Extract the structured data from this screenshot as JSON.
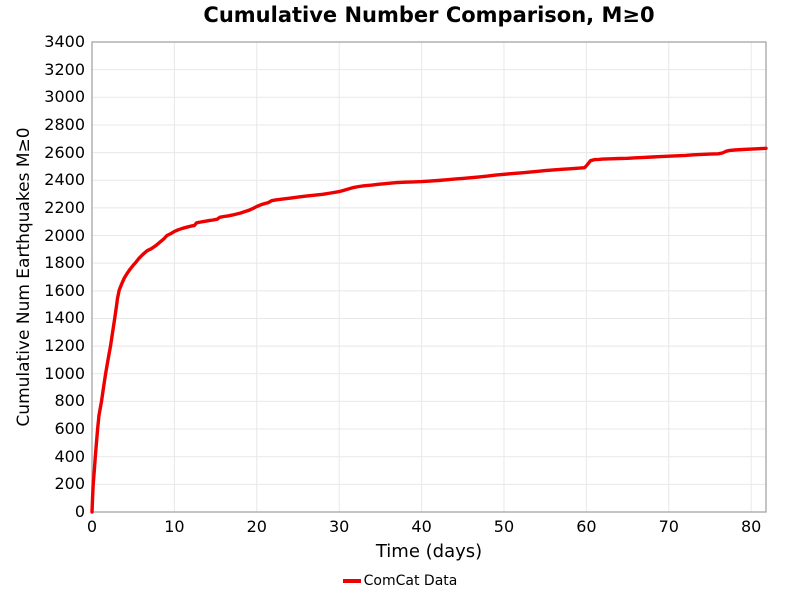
{
  "colors": {
    "line": "#ee0000",
    "grid": "#e8e8e8",
    "spine": "#a5a5a5",
    "text": "#000000",
    "background": "#ffffff"
  },
  "chart_data": {
    "type": "line",
    "title": "Cumulative Number Comparison, M≥0",
    "xlabel": "Time (days)",
    "ylabel": "Cumulative Num Earthquakes M≥0",
    "xlim": [
      0,
      81.8
    ],
    "ylim": [
      0,
      3400
    ],
    "xticks": [
      0,
      10,
      20,
      30,
      40,
      50,
      60,
      70,
      80
    ],
    "yticks": [
      0,
      200,
      400,
      600,
      800,
      1000,
      1200,
      1400,
      1600,
      1800,
      2000,
      2200,
      2400,
      2600,
      2800,
      3000,
      3200,
      3400
    ],
    "grid": true,
    "legend": {
      "position": "bottom-center",
      "entries": [
        {
          "label": "ComCat Data",
          "color": "#ee0000"
        }
      ]
    },
    "series": [
      {
        "name": "ComCat Data",
        "color": "#ee0000",
        "points": [
          [
            0,
            0
          ],
          [
            0.06,
            90
          ],
          [
            0.15,
            200
          ],
          [
            0.28,
            300
          ],
          [
            0.4,
            400
          ],
          [
            0.55,
            505
          ],
          [
            0.68,
            600
          ],
          [
            0.85,
            700
          ],
          [
            1.15,
            800
          ],
          [
            1.4,
            900
          ],
          [
            1.65,
            1000
          ],
          [
            1.95,
            1105
          ],
          [
            2.25,
            1200
          ],
          [
            2.5,
            1300
          ],
          [
            2.75,
            1400
          ],
          [
            2.95,
            1480
          ],
          [
            3.1,
            1545
          ],
          [
            3.3,
            1605
          ],
          [
            3.6,
            1650
          ],
          [
            3.9,
            1690
          ],
          [
            4.2,
            1720
          ],
          [
            4.6,
            1755
          ],
          [
            5.0,
            1785
          ],
          [
            5.3,
            1805
          ],
          [
            5.7,
            1835
          ],
          [
            6.2,
            1865
          ],
          [
            6.7,
            1890
          ],
          [
            7.2,
            1905
          ],
          [
            7.7,
            1925
          ],
          [
            8.2,
            1950
          ],
          [
            8.7,
            1975
          ],
          [
            9.1,
            2000
          ],
          [
            9.5,
            2012
          ],
          [
            10,
            2030
          ],
          [
            10.5,
            2042
          ],
          [
            11,
            2052
          ],
          [
            11.5,
            2060
          ],
          [
            12,
            2068
          ],
          [
            12.4,
            2072
          ],
          [
            12.7,
            2092
          ],
          [
            13.2,
            2098
          ],
          [
            13.7,
            2103
          ],
          [
            14.2,
            2108
          ],
          [
            14.7,
            2112
          ],
          [
            15.2,
            2118
          ],
          [
            15.5,
            2132
          ],
          [
            16,
            2138
          ],
          [
            16.5,
            2142
          ],
          [
            17,
            2148
          ],
          [
            17.5,
            2155
          ],
          [
            18,
            2162
          ],
          [
            18.5,
            2172
          ],
          [
            19,
            2182
          ],
          [
            19.5,
            2195
          ],
          [
            20,
            2210
          ],
          [
            20.5,
            2222
          ],
          [
            21,
            2232
          ],
          [
            21.4,
            2238
          ],
          [
            21.8,
            2252
          ],
          [
            22.3,
            2258
          ],
          [
            23,
            2263
          ],
          [
            24,
            2270
          ],
          [
            25,
            2278
          ],
          [
            26,
            2285
          ],
          [
            27,
            2292
          ],
          [
            28,
            2298
          ],
          [
            29,
            2308
          ],
          [
            30,
            2318
          ],
          [
            30.6,
            2328
          ],
          [
            31.2,
            2338
          ],
          [
            31.8,
            2348
          ],
          [
            32.4,
            2355
          ],
          [
            33,
            2360
          ],
          [
            34,
            2365
          ],
          [
            35,
            2372
          ],
          [
            36,
            2378
          ],
          [
            37,
            2383
          ],
          [
            38,
            2386
          ],
          [
            39,
            2388
          ],
          [
            40,
            2390
          ],
          [
            41,
            2394
          ],
          [
            42,
            2398
          ],
          [
            43,
            2403
          ],
          [
            44,
            2408
          ],
          [
            45,
            2413
          ],
          [
            46,
            2418
          ],
          [
            47,
            2424
          ],
          [
            48,
            2430
          ],
          [
            49,
            2437
          ],
          [
            50,
            2443
          ],
          [
            51,
            2448
          ],
          [
            52,
            2453
          ],
          [
            53,
            2458
          ],
          [
            54,
            2464
          ],
          [
            55,
            2470
          ],
          [
            56,
            2475
          ],
          [
            57,
            2479
          ],
          [
            58,
            2483
          ],
          [
            59,
            2487
          ],
          [
            59.8,
            2491
          ],
          [
            60.1,
            2512
          ],
          [
            60.5,
            2541
          ],
          [
            61,
            2549
          ],
          [
            61.5,
            2551
          ],
          [
            62,
            2553
          ],
          [
            63,
            2555
          ],
          [
            64,
            2557
          ],
          [
            65,
            2559
          ],
          [
            66,
            2562
          ],
          [
            67,
            2565
          ],
          [
            68,
            2568
          ],
          [
            69,
            2571
          ],
          [
            70,
            2574
          ],
          [
            71,
            2577
          ],
          [
            72,
            2580
          ],
          [
            73,
            2584
          ],
          [
            74,
            2587
          ],
          [
            75,
            2589
          ],
          [
            76,
            2591
          ],
          [
            76.5,
            2597
          ],
          [
            77,
            2610
          ],
          [
            77.4,
            2616
          ],
          [
            78,
            2619
          ],
          [
            79,
            2622
          ],
          [
            80,
            2625
          ],
          [
            81,
            2628
          ],
          [
            81.8,
            2631
          ]
        ]
      }
    ]
  }
}
